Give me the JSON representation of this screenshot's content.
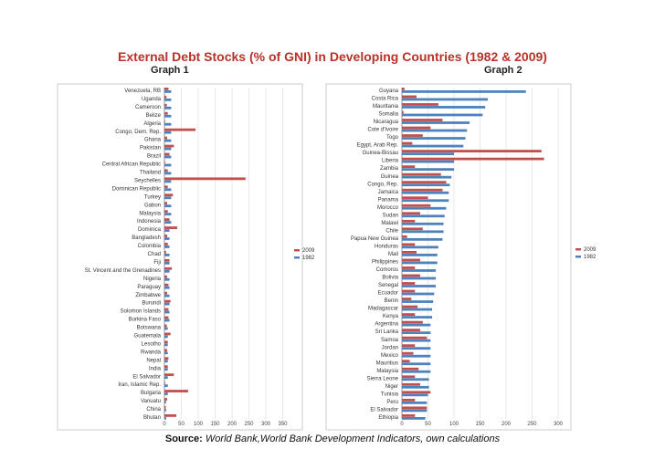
{
  "title": "External Debt Stocks (% of GNI) in Developing Countries  (1982 & 2009)",
  "source": {
    "label": "Source:",
    "text": "World Bank,World Bank Development Indicators, own calculations"
  },
  "colors": {
    "s2009": "#c0504d",
    "s1982": "#4f81bd",
    "title": "#b8322a"
  },
  "chart_data": [
    {
      "type": "bar",
      "orientation": "horizontal",
      "title": "Graph 1",
      "xlim": [
        0,
        350
      ],
      "xticks": [
        "0",
        "50",
        "100",
        "150",
        "200",
        "250",
        "300",
        "350"
      ],
      "categories": [
        "Venezuela, RB",
        "Uganda",
        "Cameroon",
        "Belize",
        "Algeria",
        "Congo, Dem. Rep.",
        "Ghana",
        "Pakistan",
        "Brazil",
        "Central African Republic",
        "Thailand",
        "Seychelles",
        "Dominican Republic",
        "Turkey",
        "Gabon",
        "Malaysia",
        "Indonesia",
        "Dominica",
        "Bangladesh",
        "Colombia",
        "Chad",
        "Fiji",
        "St. Vincent and the Grenadines",
        "Nigeria",
        "Paraguay",
        "Zimbabwe",
        "Burundi",
        "Solomon Islands",
        "Burkina Faso",
        "Botswana",
        "Guatemala",
        "Lesotho",
        "Rwanda",
        "Nepal",
        "India",
        "El Salvador",
        "Iran, Islamic Rep.",
        "Bulgaria",
        "Vanuatu",
        "China",
        "Bhutan"
      ],
      "series": [
        {
          "name": "2009",
          "values": [
            12,
            6,
            7,
            10,
            2,
            92,
            8,
            28,
            15,
            2,
            10,
            240,
            10,
            25,
            8,
            10,
            15,
            38,
            8,
            10,
            5,
            15,
            22,
            8,
            12,
            8,
            18,
            12,
            12,
            7,
            18,
            10,
            8,
            12,
            10,
            28,
            2,
            70,
            8,
            4,
            35
          ]
        },
        {
          "name": "1982",
          "values": [
            20,
            20,
            20,
            20,
            20,
            20,
            20,
            20,
            20,
            20,
            20,
            20,
            20,
            20,
            20,
            20,
            20,
            15,
            15,
            15,
            15,
            15,
            15,
            15,
            15,
            15,
            15,
            15,
            15,
            10,
            10,
            10,
            10,
            10,
            10,
            10,
            10,
            10,
            5,
            5,
            5
          ]
        }
      ],
      "legend": [
        "2009",
        "1982"
      ]
    },
    {
      "type": "bar",
      "orientation": "horizontal",
      "title": "Graph 2",
      "xlim": [
        0,
        300
      ],
      "xticks": [
        "0",
        "50",
        "100",
        "150",
        "200",
        "250",
        "300"
      ],
      "categories": [
        "Guyana",
        "Costa Rica",
        "Mauritania",
        "Somalia",
        "Nicaragua",
        "Cote d'Ivoire",
        "Togo",
        "Egypt, Arab Rep.",
        "Guinea-Bissau",
        "Liberia",
        "Zambia",
        "Guinea",
        "Congo, Rep.",
        "Jamaica",
        "Panama",
        "Morocco",
        "Sudan",
        "Malawi",
        "Chile",
        "Papua New Guinea",
        "Honduras",
        "Mali",
        "Philippines",
        "Comoros",
        "Bolivia",
        "Senegal",
        "Ecuador",
        "Benin",
        "Madagascar",
        "Kenya",
        "Argentina",
        "Sri Lanka",
        "Samoa",
        "Jordan",
        "Mexico",
        "Mauritius",
        "Malaysia",
        "Sierra Leone",
        "Niger",
        "Tunisia",
        "Peru",
        "El Salvador",
        "Ethiopia"
      ],
      "series": [
        {
          "name": "2009",
          "values": [
            5,
            28,
            70,
            3,
            78,
            55,
            40,
            20,
            268,
            273,
            25,
            75,
            85,
            78,
            50,
            55,
            35,
            25,
            40,
            10,
            25,
            28,
            35,
            25,
            35,
            25,
            25,
            18,
            30,
            25,
            40,
            35,
            48,
            25,
            22,
            15,
            32,
            25,
            35,
            55,
            25,
            48,
            25
          ]
        },
        {
          "name": "1982",
          "values": [
            238,
            165,
            160,
            155,
            130,
            125,
            122,
            118,
            100,
            100,
            100,
            95,
            92,
            90,
            90,
            85,
            82,
            80,
            80,
            78,
            70,
            68,
            68,
            65,
            65,
            65,
            62,
            60,
            58,
            58,
            55,
            55,
            55,
            55,
            55,
            55,
            55,
            52,
            52,
            50,
            48,
            48,
            45
          ]
        }
      ],
      "legend": [
        "2009",
        "1982"
      ]
    }
  ]
}
